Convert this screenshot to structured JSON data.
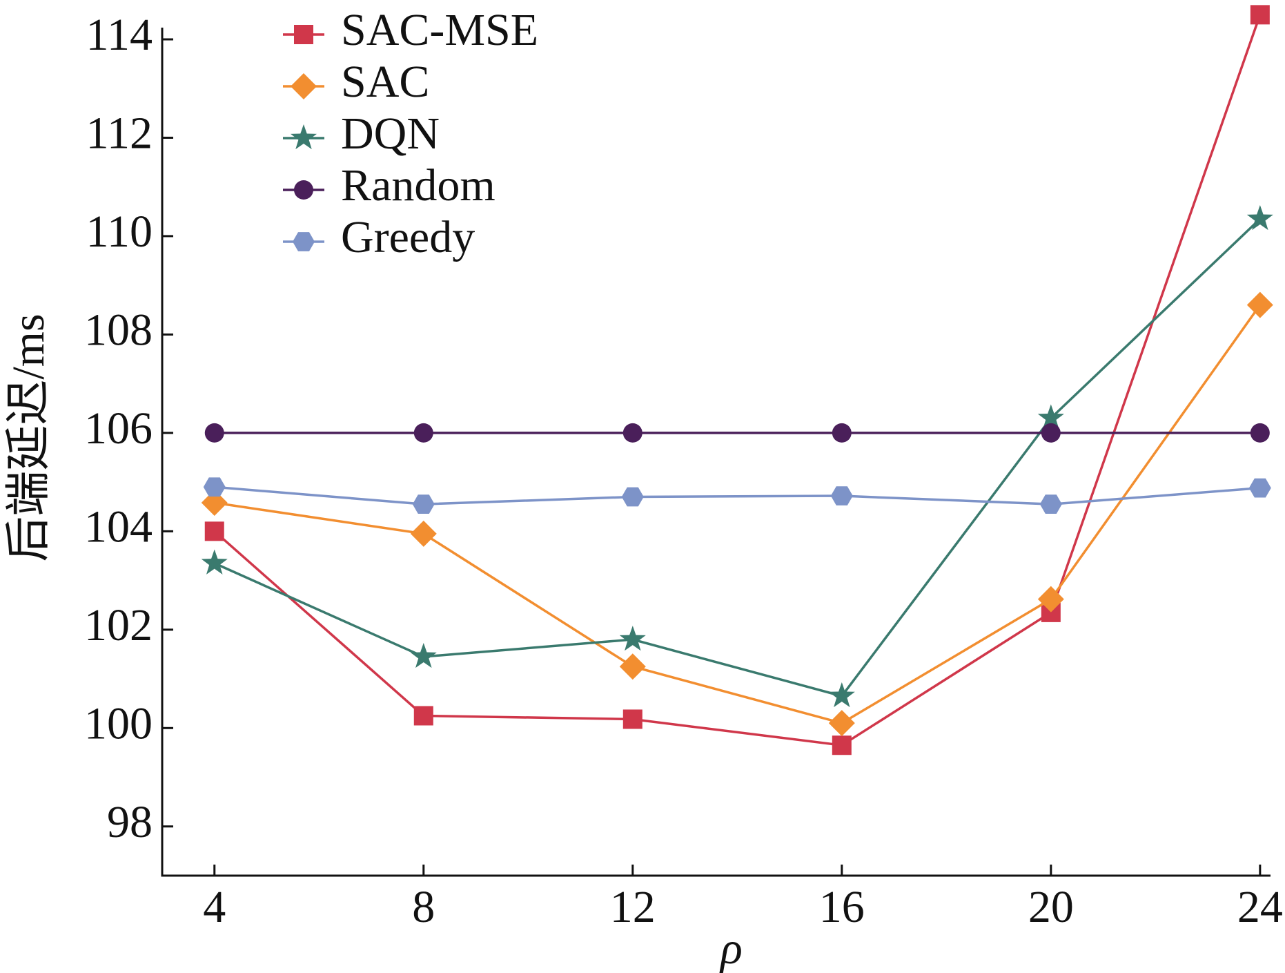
{
  "chart_data": {
    "type": "line",
    "x": [
      4,
      8,
      12,
      16,
      20,
      24
    ],
    "xlabel": "ρ",
    "ylabel": "后端延迟/ms",
    "xlim": [
      3,
      24.2
    ],
    "xticks": [
      4,
      8,
      12,
      16,
      20,
      24
    ],
    "ylim": [
      97,
      114.8
    ],
    "yticks": [
      98,
      100,
      102,
      104,
      106,
      108,
      110,
      112,
      114
    ],
    "legend": "upper left",
    "series": [
      {
        "name": "SAC-MSE",
        "color": "#d0374a",
        "marker": "square",
        "values": [
          104.0,
          100.25,
          100.18,
          99.65,
          102.35,
          114.5
        ]
      },
      {
        "name": "SAC",
        "color": "#f28e30",
        "marker": "diamond",
        "values": [
          104.58,
          103.95,
          101.25,
          100.1,
          102.62,
          108.6
        ]
      },
      {
        "name": "DQN",
        "color": "#3a7a6e",
        "marker": "star",
        "values": [
          103.35,
          101.45,
          101.8,
          100.65,
          106.3,
          110.35
        ]
      },
      {
        "name": "Random",
        "color": "#4a1f5a",
        "marker": "circle",
        "values": [
          106,
          106,
          106,
          106,
          106,
          106
        ]
      },
      {
        "name": "Greedy",
        "color": "#7d93c8",
        "marker": "hexagon",
        "values": [
          104.9,
          104.55,
          104.7,
          104.72,
          104.55,
          104.88
        ]
      }
    ]
  }
}
